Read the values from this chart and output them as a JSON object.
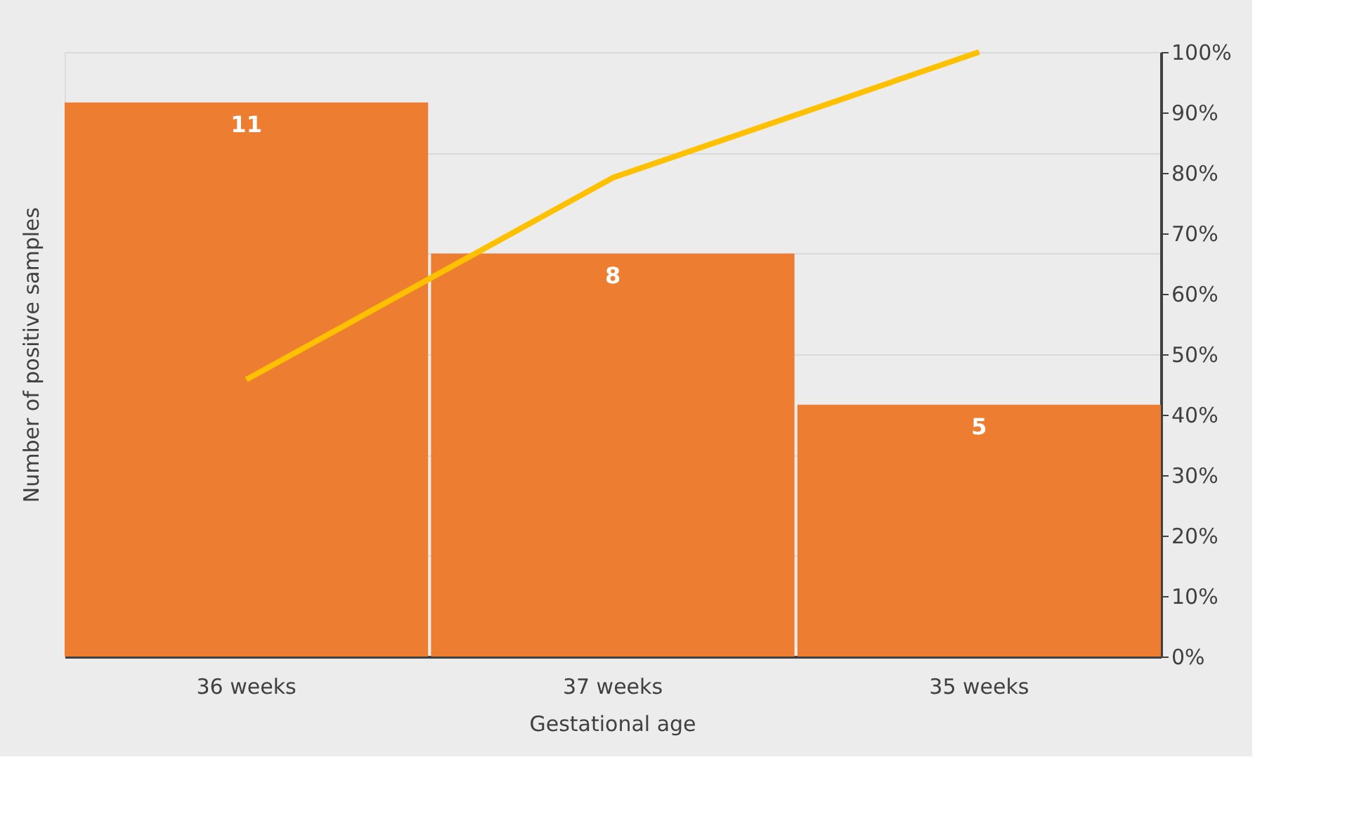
{
  "chart_data": {
    "type": "bar",
    "xlabel": "Gestational age",
    "ylabel": "Number of positive samples",
    "categories": [
      "36 weeks",
      "37 weeks",
      "35 weeks"
    ],
    "series": [
      {
        "color": "#ed7d31",
        "values": [
          11,
          8,
          5
        ],
        "value_labels": [
          "11",
          "8",
          "5"
        ]
      },
      {
        "type": "line",
        "axis": "y2",
        "color": "#ffc000",
        "values": [
          45.8,
          79.2,
          100
        ]
      }
    ],
    "ylim": [
      0,
      12
    ],
    "yticks": [
      {
        "value": 0,
        "label": null
      },
      {
        "value": 2,
        "label": null
      },
      {
        "value": 4,
        "label": null
      },
      {
        "value": 6,
        "label": null
      },
      {
        "value": 8,
        "label": null
      },
      {
        "value": 10,
        "label": null
      },
      {
        "value": 12,
        "label": null
      }
    ],
    "y2lim": [
      0,
      100
    ],
    "y2ticks": [
      {
        "value": 0,
        "label": "0%"
      },
      {
        "value": 10,
        "label": "10%"
      },
      {
        "value": 20,
        "label": "20%"
      },
      {
        "value": 30,
        "label": "30%"
      },
      {
        "value": 40,
        "label": "40%"
      },
      {
        "value": 50,
        "label": "50%"
      },
      {
        "value": 60,
        "label": "60%"
      },
      {
        "value": 70,
        "label": "70%"
      },
      {
        "value": 80,
        "label": "80%"
      },
      {
        "value": 90,
        "label": "90%"
      },
      {
        "value": 100,
        "label": "100%"
      }
    ],
    "grid": "y",
    "marker": "none",
    "line_style": "solid"
  }
}
